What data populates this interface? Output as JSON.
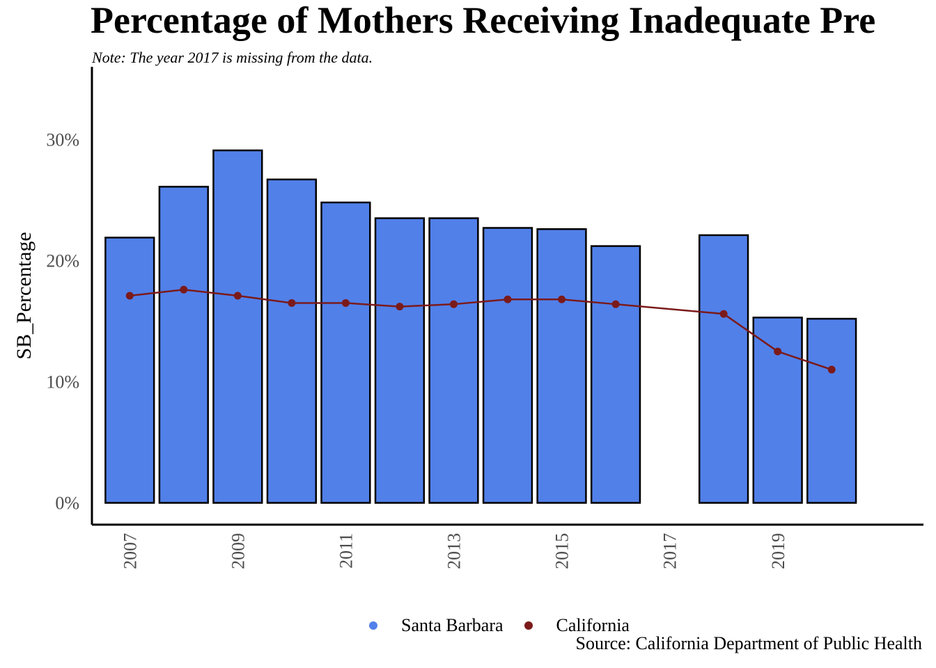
{
  "chart_data": {
    "type": "bar",
    "title": "Percentage of Mothers Receiving Inadequate Pre",
    "subtitle": "Note: The year 2017 is missing from the data.",
    "xlabel": "",
    "ylabel": "SB_Percentage",
    "caption": "Source: California Department of Public Health",
    "ylim": [
      -1.8,
      36
    ],
    "y_ticks": [
      0,
      10,
      20,
      30
    ],
    "y_tick_labels": [
      "0%",
      "10%",
      "20%",
      "30%"
    ],
    "xlim": [
      2006.3,
      2021.7
    ],
    "x_ticks": [
      2007,
      2009,
      2011,
      2013,
      2015,
      2017,
      2019
    ],
    "x_tick_labels": [
      "2007",
      "2009",
      "2011",
      "2013",
      "2015",
      "2017",
      "2019"
    ],
    "grid": false,
    "legend_position": "bottom",
    "series": [
      {
        "name": "Santa Barbara",
        "type": "bar",
        "color": "#5180E9",
        "x": [
          2007,
          2008,
          2009,
          2010,
          2011,
          2012,
          2013,
          2014,
          2015,
          2016,
          2018,
          2019,
          2020
        ],
        "values": [
          21.9,
          26.1,
          29.1,
          26.7,
          24.8,
          23.5,
          23.5,
          22.7,
          22.6,
          21.2,
          22.1,
          15.3,
          15.2
        ]
      },
      {
        "name": "California",
        "type": "line",
        "color": "#7B1A1A",
        "x": [
          2007,
          2008,
          2009,
          2010,
          2011,
          2012,
          2013,
          2014,
          2015,
          2016,
          2018,
          2019,
          2020
        ],
        "values": [
          17.1,
          17.6,
          17.1,
          16.5,
          16.5,
          16.2,
          16.4,
          16.8,
          16.8,
          16.4,
          15.6,
          12.5,
          11.0
        ]
      }
    ]
  }
}
